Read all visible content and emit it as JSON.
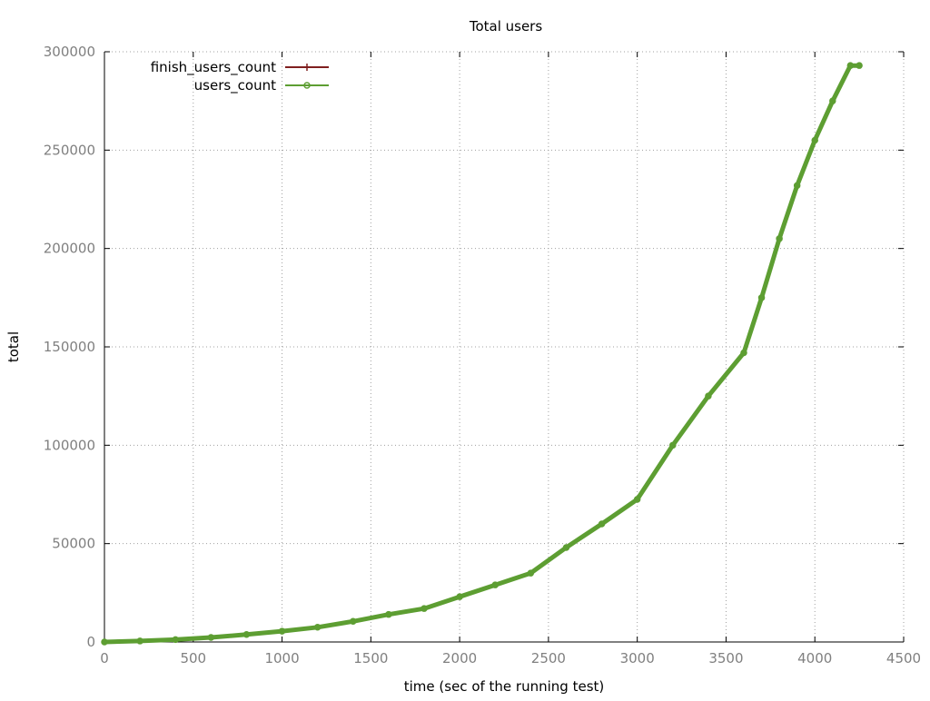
{
  "chart_data": {
    "type": "line",
    "title": "Total users",
    "xlabel": "time (sec of the running test)",
    "ylabel": "total",
    "xlim": [
      0,
      4500
    ],
    "ylim": [
      0,
      300000
    ],
    "x_ticks": [
      0,
      500,
      1000,
      1500,
      2000,
      2500,
      3000,
      3500,
      4000,
      4500
    ],
    "y_ticks": [
      0,
      50000,
      100000,
      150000,
      200000,
      250000,
      300000
    ],
    "x_tick_labels": [
      "0",
      "500",
      "1000",
      "1500",
      "2000",
      "2500",
      "3000",
      "3500",
      "4000",
      "4500"
    ],
    "y_tick_labels": [
      "0",
      "50000",
      "100000",
      "150000",
      "200000",
      "250000",
      "300000"
    ],
    "grid": true,
    "legend_position": "top-left",
    "series": [
      {
        "name": "finish_users_count",
        "color": "#7f1f1f",
        "marker": "plus",
        "x": [
          0,
          200,
          400,
          600,
          800,
          1000,
          1200,
          1400,
          1600,
          1800,
          2000,
          2200,
          2400,
          2600,
          2800,
          3000,
          3200,
          3400,
          3600,
          3700,
          3800,
          3900,
          4000,
          4100,
          4200,
          4250
        ],
        "y": [
          0,
          500,
          1200,
          2300,
          3800,
          5500,
          7500,
          10500,
          14000,
          17000,
          23000,
          29000,
          35000,
          48000,
          60000,
          72500,
          100000,
          125000,
          147000,
          175000,
          205000,
          232000,
          255000,
          275000,
          293000,
          293000
        ]
      },
      {
        "name": "users_count",
        "color": "#5d9e32",
        "marker": "circle",
        "x": [
          0,
          200,
          400,
          600,
          800,
          1000,
          1200,
          1400,
          1600,
          1800,
          2000,
          2200,
          2400,
          2600,
          2800,
          3000,
          3200,
          3400,
          3600,
          3700,
          3800,
          3900,
          4000,
          4100,
          4200,
          4250
        ],
        "y": [
          0,
          500,
          1200,
          2300,
          3800,
          5500,
          7500,
          10500,
          14000,
          17000,
          23000,
          29000,
          35000,
          48000,
          60000,
          72500,
          100000,
          125000,
          147000,
          175000,
          205000,
          232000,
          255000,
          275000,
          293000,
          293000
        ]
      }
    ]
  }
}
